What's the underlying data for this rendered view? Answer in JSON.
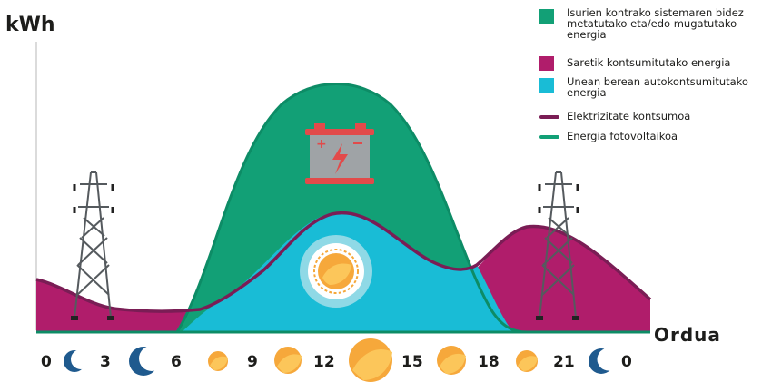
{
  "axis": {
    "y_label": "kWh",
    "x_label": "Ordua"
  },
  "legend": [
    {
      "kind": "box",
      "color": "#12a076",
      "label": "Isurien kontrako sistemaren bidez metatutako eta/edo mugatutako energia"
    },
    {
      "kind": "box",
      "color": "#b01d6b",
      "label": "Saretik kontsumitutako energia"
    },
    {
      "kind": "box",
      "color": "#19bcd6",
      "label": "Unean berean autokontsumitutako energia"
    },
    {
      "kind": "line",
      "color": "#7a1d55",
      "label": "Elektrizitate kontsumoa"
    },
    {
      "kind": "line",
      "color": "#12a076",
      "label": "Energia fotovoltaikoa"
    }
  ],
  "hours": [
    {
      "label": "0",
      "icon": "moon-icon"
    },
    {
      "label": "3",
      "icon": "moon-icon"
    },
    {
      "label": "6",
      "icon": "sun-icon"
    },
    {
      "label": "9",
      "icon": "sun-icon"
    },
    {
      "label": "12",
      "icon": "sun-icon"
    },
    {
      "label": "15",
      "icon": "sun-icon"
    },
    {
      "label": "18",
      "icon": "sun-icon"
    },
    {
      "label": "21",
      "icon": "moon-icon"
    },
    {
      "label": "0",
      "icon": null
    }
  ],
  "colors": {
    "storage": "#12a076",
    "grid": "#b01d6b",
    "self_consumption": "#19bcd6",
    "consumption_line": "#7a1d55",
    "pv_line": "#12a076",
    "moon": "#1f5a8e",
    "sun": "#f6a83b",
    "battery": "#e24a4a"
  },
  "icons": [
    "battery-icon",
    "sun-icon",
    "power-tower-icon"
  ]
}
